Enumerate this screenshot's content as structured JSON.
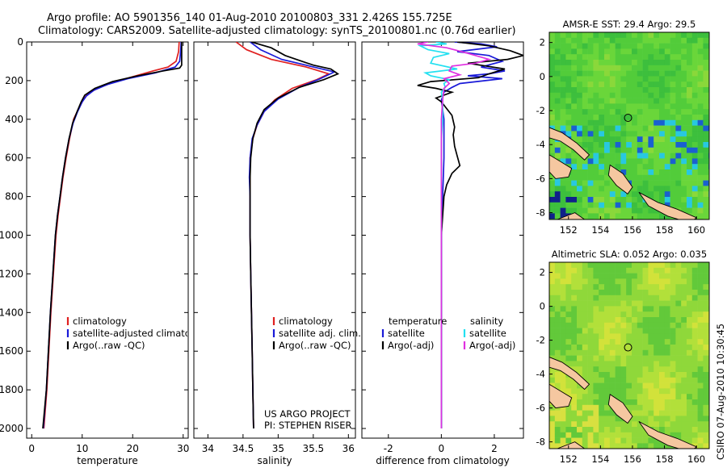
{
  "header": {
    "line1": "Argo profile: AO 5901356_140 01-Aug-2010 20100803_331 2.426S 155.725E",
    "line2": "Climatology: CARS2009. Satellite-adjusted climatology: synTS_20100801.nc (0.76d earlier)"
  },
  "annotations": {
    "project": "US ARGO PROJECT",
    "pi": "PI: STEPHEN RISER",
    "timestamp": "CSIRO 07-Aug-2010 10:30:45"
  },
  "colors": {
    "climatology": "#e02020",
    "satellite": "#1a1ad8",
    "argo": "#000000",
    "salinity_satellite": "#22e0f0",
    "salinity_argo": "#e030e0"
  },
  "chart_data": [
    {
      "id": "temperature",
      "type": "line",
      "xlabel": "temperature",
      "ylabel": "",
      "xlim": [
        -1,
        31
      ],
      "ylim": [
        0,
        2050
      ],
      "y_inverted": true,
      "xticks": [
        0,
        10,
        20,
        30
      ],
      "yticks": [
        0,
        200,
        400,
        600,
        800,
        1000,
        1200,
        1400,
        1600,
        1800,
        2000
      ],
      "legend": [
        "climatology",
        "satellite-adjusted climatology",
        "Argo(..raw -QC)"
      ],
      "series": [
        {
          "name": "climatology",
          "color": "#e02020",
          "points": [
            [
              29.2,
              0
            ],
            [
              29.1,
              50
            ],
            [
              28.6,
              100
            ],
            [
              27,
              130
            ],
            [
              24,
              150
            ],
            [
              20,
              180
            ],
            [
              16,
              210
            ],
            [
              13,
              240
            ],
            [
              11,
              270
            ],
            [
              10.2,
              300
            ],
            [
              9.2,
              350
            ],
            [
              8.3,
              400
            ],
            [
              7.5,
              500
            ],
            [
              6.8,
              600
            ],
            [
              6.2,
              700
            ],
            [
              5.7,
              800
            ],
            [
              5.2,
              900
            ],
            [
              4.8,
              1000
            ],
            [
              4.3,
              1200
            ],
            [
              3.8,
              1400
            ],
            [
              3.4,
              1600
            ],
            [
              3.0,
              1800
            ],
            [
              2.4,
              2000
            ]
          ]
        },
        {
          "name": "satellite-adjusted climatology",
          "color": "#1a1ad8",
          "points": [
            [
              29.6,
              0
            ],
            [
              29.5,
              50
            ],
            [
              29.3,
              100
            ],
            [
              28.4,
              130
            ],
            [
              24.5,
              160
            ],
            [
              19,
              190
            ],
            [
              15,
              220
            ],
            [
              12.3,
              250
            ],
            [
              10.8,
              280
            ],
            [
              10,
              310
            ],
            [
              9.1,
              360
            ],
            [
              8.2,
              420
            ],
            [
              7.4,
              500
            ],
            [
              6.7,
              600
            ],
            [
              6.1,
              700
            ],
            [
              5.6,
              800
            ],
            [
              5.1,
              900
            ],
            [
              4.7,
              1000
            ],
            [
              4.2,
              1200
            ],
            [
              3.7,
              1400
            ],
            [
              3.3,
              1600
            ],
            [
              2.9,
              1800
            ],
            [
              2.3,
              2000
            ]
          ]
        },
        {
          "name": "Argo(..raw -QC)",
          "color": "#000000",
          "points": [
            [
              29.7,
              0
            ],
            [
              29.7,
              50
            ],
            [
              29.7,
              120
            ],
            [
              29.3,
              135
            ],
            [
              26,
              150
            ],
            [
              21,
              175
            ],
            [
              16,
              205
            ],
            [
              12.5,
              240
            ],
            [
              10.5,
              275
            ],
            [
              9.8,
              310
            ],
            [
              9.0,
              360
            ],
            [
              8.1,
              420
            ],
            [
              7.4,
              500
            ],
            [
              6.7,
              600
            ],
            [
              6.1,
              700
            ],
            [
              5.6,
              800
            ],
            [
              5.1,
              900
            ],
            [
              4.7,
              1000
            ],
            [
              4.2,
              1200
            ],
            [
              3.7,
              1400
            ],
            [
              3.3,
              1600
            ],
            [
              2.9,
              1800
            ],
            [
              2.2,
              2000
            ]
          ]
        }
      ]
    },
    {
      "id": "salinity",
      "type": "line",
      "xlabel": "salinity",
      "ylabel": "",
      "xlim": [
        33.8,
        36.1
      ],
      "ylim": [
        0,
        2050
      ],
      "y_inverted": true,
      "xticks": [
        34,
        34.5,
        35,
        35.5,
        36
      ],
      "legend": [
        "climatology",
        "satellite adj. clim.",
        "Argo(..raw -QC)"
      ],
      "series": [
        {
          "name": "climatology",
          "color": "#e02020",
          "points": [
            [
              34.4,
              0
            ],
            [
              34.55,
              40
            ],
            [
              34.9,
              90
            ],
            [
              35.4,
              130
            ],
            [
              35.72,
              165
            ],
            [
              35.55,
              195
            ],
            [
              35.2,
              240
            ],
            [
              34.95,
              300
            ],
            [
              34.8,
              360
            ],
            [
              34.7,
              430
            ],
            [
              34.64,
              500
            ],
            [
              34.6,
              600
            ],
            [
              34.6,
              700
            ],
            [
              34.6,
              800
            ],
            [
              34.6,
              1000
            ],
            [
              34.61,
              1200
            ],
            [
              34.62,
              1400
            ],
            [
              34.63,
              1600
            ],
            [
              34.64,
              1800
            ],
            [
              34.65,
              2000
            ]
          ]
        },
        {
          "name": "satellite adj. clim.",
          "color": "#1a1ad8",
          "points": [
            [
              34.6,
              0
            ],
            [
              34.75,
              40
            ],
            [
              35.05,
              90
            ],
            [
              35.45,
              125
            ],
            [
              35.8,
              155
            ],
            [
              35.6,
              190
            ],
            [
              35.3,
              235
            ],
            [
              35.0,
              295
            ],
            [
              34.8,
              360
            ],
            [
              34.7,
              430
            ],
            [
              34.63,
              500
            ],
            [
              34.6,
              600
            ],
            [
              34.59,
              700
            ],
            [
              34.6,
              800
            ],
            [
              34.6,
              1000
            ],
            [
              34.61,
              1200
            ],
            [
              34.62,
              1400
            ],
            [
              34.63,
              1600
            ],
            [
              34.64,
              1800
            ],
            [
              34.65,
              2000
            ]
          ]
        },
        {
          "name": "Argo(..raw -QC)",
          "color": "#000000",
          "points": [
            [
              34.62,
              0
            ],
            [
              34.9,
              30
            ],
            [
              35.1,
              70
            ],
            [
              35.3,
              95
            ],
            [
              35.5,
              120
            ],
            [
              35.75,
              140
            ],
            [
              35.85,
              165
            ],
            [
              35.65,
              195
            ],
            [
              35.3,
              235
            ],
            [
              35.0,
              290
            ],
            [
              34.8,
              350
            ],
            [
              34.7,
              420
            ],
            [
              34.64,
              500
            ],
            [
              34.61,
              600
            ],
            [
              34.6,
              700
            ],
            [
              34.6,
              800
            ],
            [
              34.6,
              1000
            ],
            [
              34.61,
              1200
            ],
            [
              34.62,
              1400
            ],
            [
              34.63,
              1600
            ],
            [
              34.64,
              1800
            ],
            [
              34.65,
              2000
            ]
          ]
        }
      ]
    },
    {
      "id": "difference",
      "type": "line",
      "xlabel": "difference from climatology",
      "ylabel": "",
      "xlim": [
        -3,
        3.1
      ],
      "ylim": [
        0,
        2050
      ],
      "y_inverted": true,
      "xticks": [
        -2,
        0,
        2
      ],
      "legend_titles": [
        "temperature",
        "salinity"
      ],
      "legend_temperature": [
        "satellite",
        "Argo(-adj)"
      ],
      "legend_salinity": [
        "satellite",
        "Argo(-adj)"
      ],
      "series": [
        {
          "name": "temperature satellite",
          "color": "#1a1ad8",
          "points": [
            [
              0.5,
              0
            ],
            [
              1.5,
              10
            ],
            [
              2.1,
              25
            ],
            [
              1.2,
              40
            ],
            [
              0.6,
              50
            ],
            [
              1.8,
              70
            ],
            [
              2.3,
              100
            ],
            [
              1.5,
              130
            ],
            [
              2.4,
              150
            ],
            [
              1.8,
              165
            ],
            [
              1.0,
              175
            ],
            [
              2.3,
              190
            ],
            [
              0.7,
              215
            ],
            [
              0.4,
              235
            ],
            [
              0.1,
              260
            ],
            [
              0,
              300
            ],
            [
              0.1,
              400
            ],
            [
              0.1,
              600
            ],
            [
              0.05,
              800
            ],
            [
              0,
              1000
            ],
            [
              0,
              1400
            ],
            [
              0,
              1800
            ],
            [
              0,
              2000
            ]
          ]
        },
        {
          "name": "temperature Argo(-adj)",
          "color": "#000000",
          "points": [
            [
              0.6,
              0
            ],
            [
              1.8,
              20
            ],
            [
              2.6,
              45
            ],
            [
              3.1,
              70
            ],
            [
              2.5,
              90
            ],
            [
              1.0,
              110
            ],
            [
              2.4,
              140
            ],
            [
              1.8,
              165
            ],
            [
              1.4,
              185
            ],
            [
              -0.4,
              205
            ],
            [
              -0.9,
              225
            ],
            [
              -0.2,
              240
            ],
            [
              0.4,
              260
            ],
            [
              -0.2,
              290
            ],
            [
              0,
              310
            ],
            [
              0.4,
              380
            ],
            [
              0.5,
              440
            ],
            [
              0.45,
              480
            ],
            [
              0.5,
              540
            ],
            [
              0.6,
              590
            ],
            [
              0.7,
              640
            ],
            [
              0.4,
              680
            ],
            [
              0.2,
              740
            ],
            [
              0.1,
              800
            ],
            [
              0.05,
              900
            ],
            [
              0,
              1000
            ],
            [
              0,
              1300
            ],
            [
              0,
              1600
            ],
            [
              0,
              2000
            ]
          ]
        },
        {
          "name": "salinity satellite",
          "color": "#22e0f0",
          "points": [
            [
              -0.2,
              0
            ],
            [
              0.2,
              10
            ],
            [
              -0.8,
              20
            ],
            [
              -0.5,
              40
            ],
            [
              0.3,
              60
            ],
            [
              -0.3,
              80
            ],
            [
              -0.4,
              110
            ],
            [
              0.6,
              140
            ],
            [
              -0.6,
              160
            ],
            [
              -0.4,
              175
            ],
            [
              0.3,
              195
            ],
            [
              0.1,
              215
            ],
            [
              0.15,
              235
            ],
            [
              0,
              260
            ],
            [
              0.05,
              300
            ],
            [
              0.05,
              400
            ],
            [
              0,
              500
            ],
            [
              0,
              700
            ],
            [
              0,
              1000
            ],
            [
              0,
              1400
            ],
            [
              0,
              1800
            ],
            [
              0,
              2000
            ]
          ]
        },
        {
          "name": "salinity Argo(-adj)",
          "color": "#e030e0",
          "points": [
            [
              -0.5,
              0
            ],
            [
              -0.9,
              10
            ],
            [
              0.2,
              30
            ],
            [
              0.9,
              55
            ],
            [
              1.8,
              90
            ],
            [
              1.3,
              110
            ],
            [
              0.4,
              125
            ],
            [
              0.3,
              150
            ],
            [
              0.7,
              170
            ],
            [
              0.1,
              190
            ],
            [
              0.3,
              215
            ],
            [
              0.1,
              240
            ],
            [
              0.05,
              300
            ],
            [
              0,
              400
            ],
            [
              0,
              600
            ],
            [
              0,
              800
            ],
            [
              0,
              1000
            ],
            [
              0,
              1400
            ],
            [
              0,
              1800
            ],
            [
              0,
              2000
            ]
          ]
        }
      ]
    },
    {
      "id": "sst_map",
      "type": "heatmap",
      "title": "AMSR-E SST: 29.4 Argo: 29.5",
      "xlim": [
        150.8,
        160.8
      ],
      "ylim": [
        -8.4,
        2.6
      ],
      "xticks": [
        152,
        154,
        156,
        158,
        160
      ],
      "yticks": [
        2,
        0,
        -2,
        -4,
        -6,
        -8
      ],
      "marker": {
        "lon": 155.725,
        "lat": -2.426
      }
    },
    {
      "id": "sla_map",
      "type": "heatmap",
      "title": "Altimetric SLA: 0.052 Argo: 0.035",
      "xlim": [
        150.8,
        160.8
      ],
      "ylim": [
        -8.4,
        2.6
      ],
      "xticks": [
        152,
        154,
        156,
        158,
        160
      ],
      "yticks": [
        2,
        0,
        -2,
        -4,
        -6,
        -8
      ],
      "marker": {
        "lon": 155.725,
        "lat": -2.426
      }
    }
  ]
}
